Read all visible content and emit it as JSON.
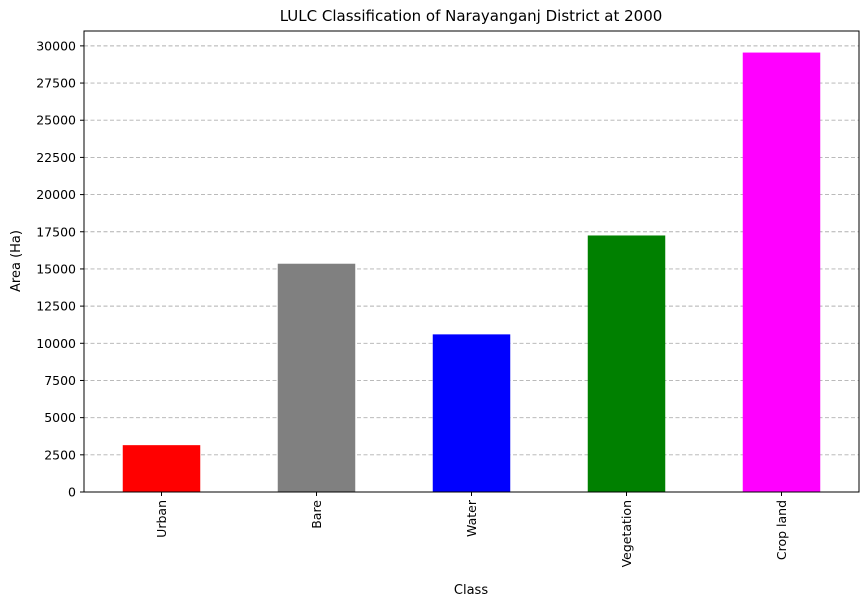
{
  "chart_data": {
    "type": "bar",
    "title": "LULC Classification of Narayanganj District at 2000",
    "xlabel": "Class",
    "ylabel": "Area (Ha)",
    "categories": [
      "Urban",
      "Bare",
      "Water",
      "Vegetation",
      "Crop land"
    ],
    "values": [
      3150,
      15350,
      10600,
      17250,
      29550
    ],
    "colors": [
      "#ff0000",
      "#808080",
      "#0000ff",
      "#008000",
      "#ff00ff"
    ],
    "ylim": [
      0,
      31000
    ],
    "yticks": [
      0,
      2500,
      5000,
      7500,
      10000,
      12500,
      15000,
      17500,
      20000,
      22500,
      25000,
      27500,
      30000
    ],
    "grid": "y-dashed",
    "legend": "none"
  }
}
